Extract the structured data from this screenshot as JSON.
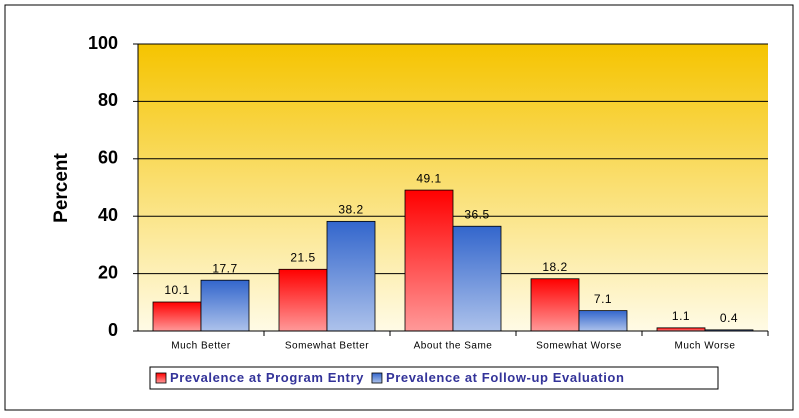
{
  "chart_data": {
    "type": "bar",
    "categories": [
      "Much Better",
      "Somewhat Better",
      "About the Same",
      "Somewhat Worse",
      "Much Worse"
    ],
    "series": [
      {
        "name": "Prevalence at Program Entry",
        "color": "#ff0000",
        "values": [
          10.1,
          21.5,
          49.1,
          18.2,
          1.1
        ]
      },
      {
        "name": "Prevalence at Follow-up Evaluation",
        "color": "#3366cc",
        "values": [
          17.7,
          38.2,
          36.5,
          7.1,
          0.4
        ]
      }
    ],
    "y_label": "Percent",
    "ylim": [
      0,
      100
    ],
    "yticks": [
      0,
      20,
      40,
      60,
      80,
      100
    ],
    "grid": true,
    "legend": "bottom"
  }
}
